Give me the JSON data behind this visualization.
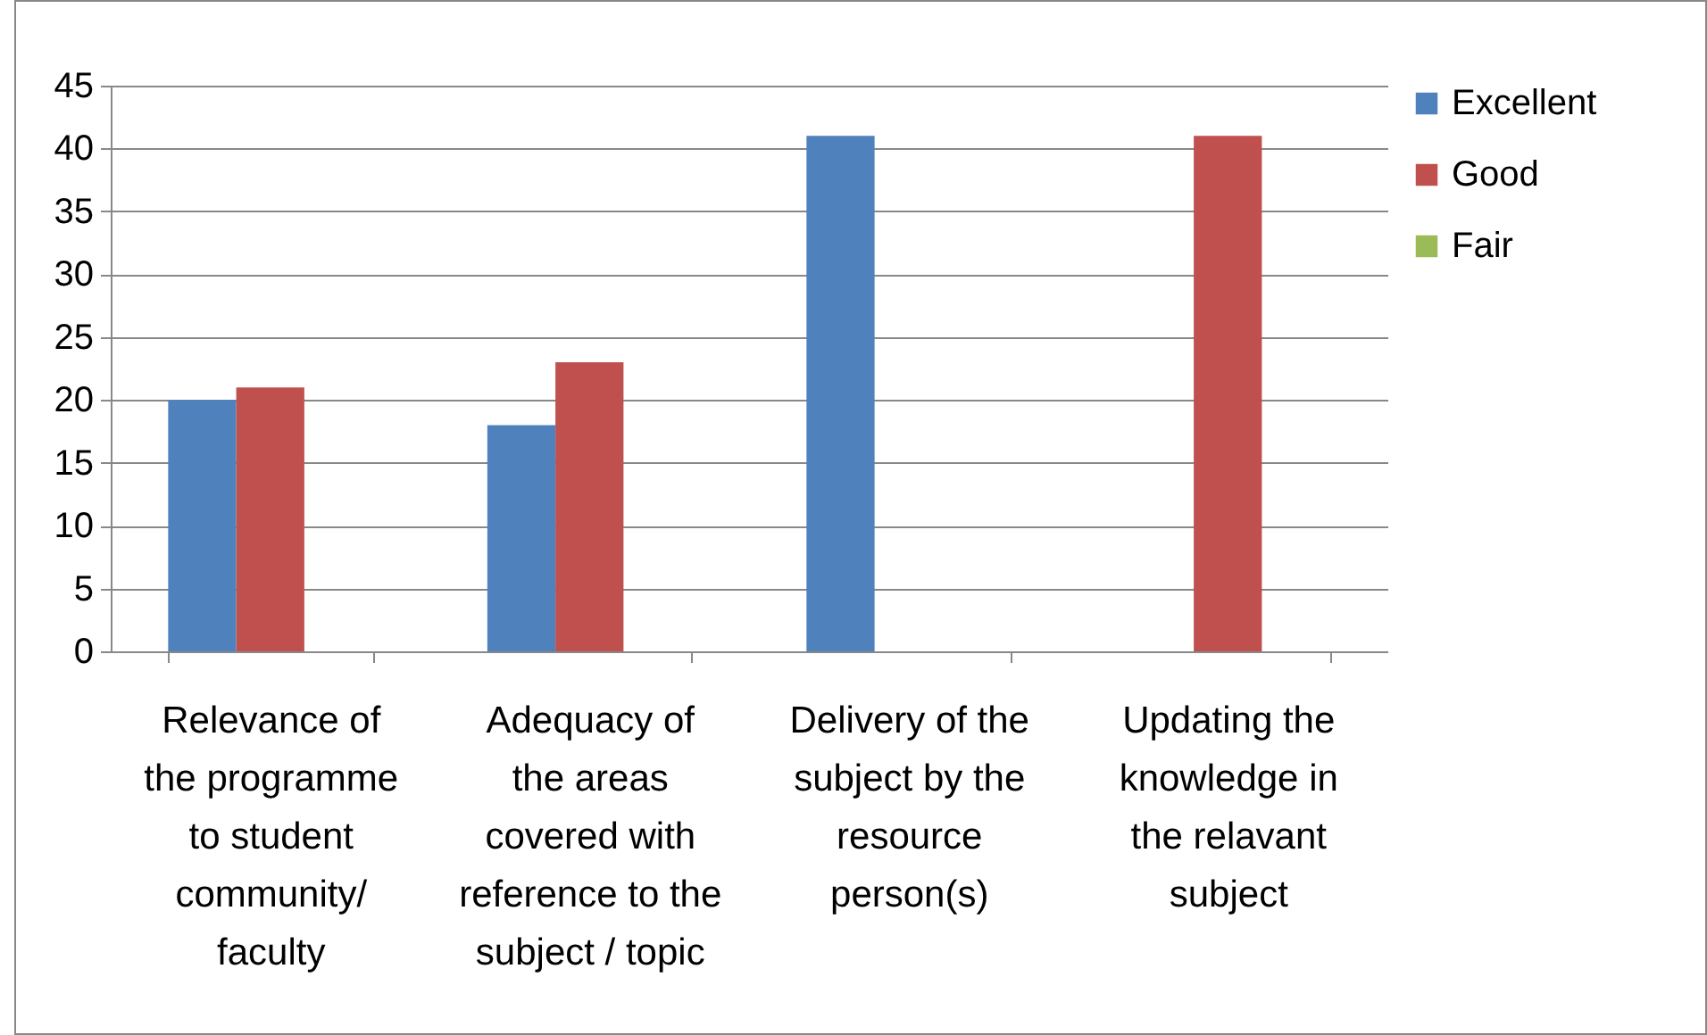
{
  "chart_data": {
    "type": "bar",
    "categories": [
      "Relevance of the programme to student community/ faculty",
      "Adequacy of the areas covered with reference to the subject / topic",
      "Delivery of the subject by the resource person(s)",
      "Updating the knowledge in the relavant subject"
    ],
    "series": [
      {
        "name": "Excellent",
        "color": "#4f81bd",
        "values": [
          20,
          18,
          41,
          0
        ]
      },
      {
        "name": "Good",
        "color": "#c0504d",
        "values": [
          21,
          23,
          0,
          41
        ]
      },
      {
        "name": "Fair",
        "color": "#9bbb59",
        "values": [
          0,
          0,
          0,
          0
        ]
      }
    ],
    "ylim": [
      0,
      45
    ],
    "yticks": [
      0,
      5,
      10,
      15,
      20,
      25,
      30,
      35,
      40,
      45
    ],
    "grid": "y",
    "legend": "right"
  }
}
